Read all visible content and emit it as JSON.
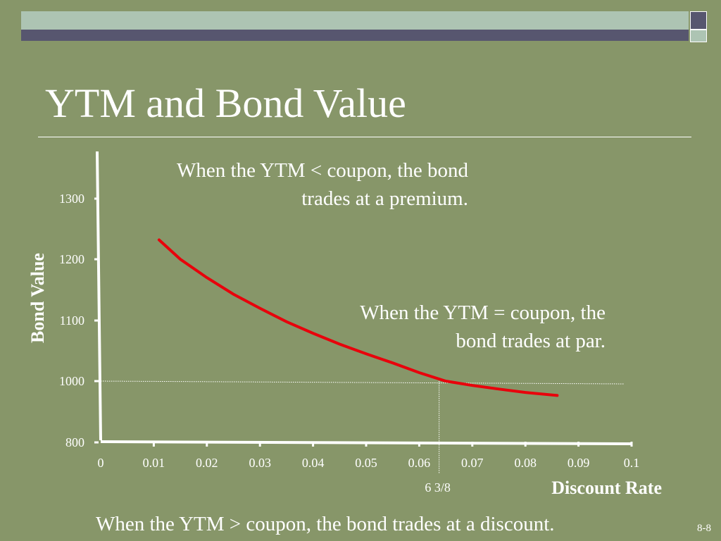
{
  "slide": {
    "title": "YTM and Bond Value",
    "note_premium_line1": "When the YTM < coupon, the bond",
    "note_premium_line2": "trades at a premium.",
    "note_par_line1": "When the YTM = coupon, the",
    "note_par_line2": "bond trades at par.",
    "note_discount": "When the YTM > coupon, the bond trades at a discount.",
    "slide_number": "8-8"
  },
  "colors": {
    "background": "#879669",
    "curve": "#e8000b",
    "text": "#ffffff",
    "bar_light": "#adc4b3",
    "bar_dark": "#57566f"
  },
  "chart_data": {
    "type": "line",
    "xlabel": "Discount Rate",
    "ylabel": "Bond Value",
    "xlim": [
      0,
      0.1
    ],
    "ylim": [
      800,
      1300
    ],
    "x_ticks": [
      "0",
      "0.01",
      "0.02",
      "0.03",
      "0.04",
      "0.05",
      "0.06",
      "0.07",
      "0.08",
      "0.09",
      "0.1"
    ],
    "y_ticks": [
      "800",
      "1000",
      "1100",
      "1200",
      "1300"
    ],
    "series": [
      {
        "x": [
          0.011,
          0.015,
          0.02,
          0.025,
          0.03,
          0.035,
          0.04,
          0.045,
          0.05,
          0.055,
          0.06,
          0.065,
          0.07,
          0.075,
          0.08,
          0.086
        ],
        "values": [
          1232,
          1200,
          1170,
          1143,
          1120,
          1098,
          1079,
          1061,
          1045,
          1030,
          1014,
          1000,
          986,
          974,
          963,
          953
        ]
      }
    ],
    "reference": {
      "par_value": 1000,
      "coupon_rate": 0.06375,
      "coupon_label": "6 3/8"
    }
  }
}
